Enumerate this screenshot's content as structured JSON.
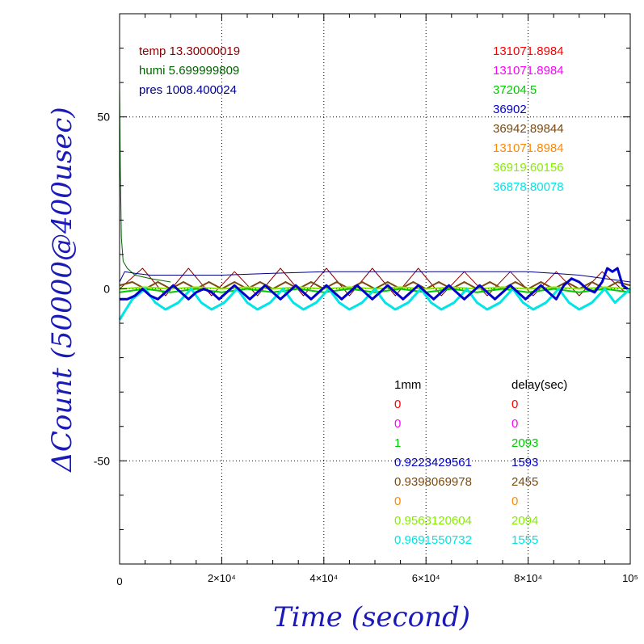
{
  "chart_data": {
    "type": "line",
    "xlabel": "Time (second)",
    "ylabel": "ΔCount (50000@400usec)",
    "xlim": [
      0,
      100000
    ],
    "ylim": [
      -80,
      80
    ],
    "grid": true,
    "x_ticks": [
      {
        "value": 0,
        "label": "0"
      },
      {
        "value": 20000,
        "label": "2×10⁴"
      },
      {
        "value": 40000,
        "label": "4×10⁴"
      },
      {
        "value": 60000,
        "label": "6×10⁴"
      },
      {
        "value": 80000,
        "label": "8×10⁴"
      },
      {
        "value": 100000,
        "label": "10⁵"
      }
    ],
    "y_ticks": [
      {
        "value": 50,
        "label": "50"
      },
      {
        "value": 0,
        "label": "0"
      },
      {
        "value": -50,
        "label": "-50"
      }
    ],
    "env_labels": [
      {
        "text": "temp 13.30000019",
        "color": "#8b0000"
      },
      {
        "text": "humi 5.699999809",
        "color": "#006400"
      },
      {
        "text": "pres 1008.400024",
        "color": "#00008b"
      }
    ],
    "legend_values": [
      {
        "text": "131071.8984",
        "color": "#ff0000"
      },
      {
        "text": "131071.8984",
        "color": "#ff00ff"
      },
      {
        "text": "37204.5",
        "color": "#00cc00"
      },
      {
        "text": "36902",
        "color": "#0000cc"
      },
      {
        "text": "36942.89844",
        "color": "#7a4a10"
      },
      {
        "text": "131071.8984",
        "color": "#ff8800"
      },
      {
        "text": "36919.60156",
        "color": "#88ee00"
      },
      {
        "text": "36878.80078",
        "color": "#00e5e5"
      }
    ],
    "table_headers": [
      "1mm",
      "delay(sec)"
    ],
    "table_rows": [
      {
        "mm": "0",
        "delay": "0",
        "color": "#ff0000"
      },
      {
        "mm": "0",
        "delay": "0",
        "color": "#ff00ff"
      },
      {
        "mm": "1",
        "delay": "2093",
        "color": "#00cc00"
      },
      {
        "mm": "0.9223429561",
        "delay": "1593",
        "color": "#0000cc"
      },
      {
        "mm": "0.9398069978",
        "delay": "2455",
        "color": "#7a4a10"
      },
      {
        "mm": "0",
        "delay": "0",
        "color": "#ff8800"
      },
      {
        "mm": "0.9563120604",
        "delay": "2094",
        "color": "#88ee00"
      },
      {
        "mm": "0.9691550732",
        "delay": "1555",
        "color": "#00e5e5"
      }
    ],
    "series": [
      {
        "name": "temp",
        "color": "#8b0000",
        "width": 1,
        "x": [
          0,
          4500,
          9000,
          13500,
          18000,
          22500,
          27000,
          31500,
          36000,
          40500,
          45000,
          49500,
          54000,
          58500,
          63000,
          67500,
          72000,
          76500,
          81000,
          85500,
          90000,
          94500,
          99000
        ],
        "y": [
          0,
          6,
          -2,
          6,
          -2,
          5,
          -2,
          6,
          -2,
          6,
          -2,
          6,
          -2,
          6,
          -2,
          5,
          -2,
          5,
          -2,
          5,
          -2,
          5,
          -1
        ]
      },
      {
        "name": "humi",
        "color": "#006400",
        "width": 1,
        "x": [
          0,
          150,
          350,
          700,
          1500,
          3000,
          6000,
          10000
        ],
        "y": [
          60,
          35,
          15,
          8,
          6,
          4,
          3,
          2
        ]
      },
      {
        "name": "pres",
        "color": "#00008b",
        "width": 1,
        "x": [
          0,
          1000,
          3000,
          6000,
          10000,
          20000,
          30000,
          40000,
          50000,
          60000,
          70000,
          80000,
          85000,
          90000,
          95000,
          100000
        ],
        "y": [
          2,
          5,
          4.5,
          4,
          4,
          4,
          4.5,
          5,
          5,
          5,
          5,
          5,
          4.5,
          4,
          3,
          2
        ]
      },
      {
        "name": "36942.89844",
        "color": "#7a4a10",
        "width": 2,
        "x": [
          0,
          2500,
          5000,
          7500,
          10000,
          12500,
          15000,
          17500,
          20000,
          22500,
          25000,
          27500,
          30000,
          32500,
          35000,
          37500,
          40000,
          42500,
          45000,
          47500,
          50000,
          52500,
          55000,
          57500,
          60000,
          62500,
          65000,
          67500,
          70000,
          72500,
          75000,
          77500,
          80000,
          82500,
          85000,
          87500,
          90000,
          92500,
          95000,
          97500,
          100000
        ],
        "y": [
          1,
          2,
          0,
          2,
          0,
          2,
          0,
          2,
          0,
          2,
          0,
          2,
          0,
          2,
          0,
          2,
          0,
          2,
          0,
          2,
          0,
          2,
          0,
          2,
          0,
          2,
          0,
          2,
          0,
          2,
          0,
          2,
          0,
          2,
          0,
          2,
          0,
          2,
          0,
          2,
          1
        ]
      },
      {
        "name": "36919.60156",
        "color": "#88ee00",
        "width": 2,
        "x": [
          0,
          5000,
          10000,
          15000,
          20000,
          25000,
          30000,
          35000,
          40000,
          45000,
          50000,
          55000,
          60000,
          65000,
          70000,
          75000,
          80000,
          85000,
          90000,
          95000,
          100000
        ],
        "y": [
          0,
          0.5,
          0,
          0.5,
          0,
          0.5,
          0,
          0.5,
          0,
          0.5,
          0,
          0.5,
          0,
          0.5,
          0,
          0.5,
          0,
          0.5,
          0,
          0.5,
          0
        ]
      },
      {
        "name": "37204.5",
        "color": "#00cc00",
        "width": 2,
        "x": [
          0,
          5000,
          10000,
          15000,
          20000,
          25000,
          30000,
          35000,
          40000,
          45000,
          50000,
          55000,
          60000,
          65000,
          70000,
          75000,
          80000,
          85000,
          90000,
          95000,
          100000
        ],
        "y": [
          -1,
          0,
          -1,
          0,
          -1,
          0,
          -1,
          0,
          -1,
          0,
          -1,
          0,
          -1,
          0,
          -1,
          0,
          -1,
          0,
          -1,
          0,
          -1
        ]
      },
      {
        "name": "36878.80078",
        "color": "#00e5e5",
        "width": 3,
        "x": [
          0,
          800,
          2500,
          5000,
          7000,
          9000,
          11500,
          14000,
          16000,
          18000,
          20500,
          23000,
          25000,
          27000,
          29500,
          32000,
          34000,
          36000,
          38500,
          41000,
          43000,
          45000,
          47500,
          50000,
          52000,
          54000,
          56500,
          59000,
          61000,
          63000,
          65500,
          68000,
          70000,
          72000,
          74500,
          77000,
          79000,
          81000,
          83500,
          86000,
          88000,
          90000,
          92500,
          95000,
          97000,
          100000
        ],
        "y": [
          -9,
          -7,
          -3,
          0,
          -4,
          -6,
          -4,
          0,
          -4,
          -6,
          -4,
          0,
          -4,
          -6,
          -4,
          0,
          -4,
          -6,
          -4,
          0,
          -4,
          -6,
          -4,
          0,
          -4,
          -6,
          -4,
          0,
          -4,
          -6,
          -4,
          0,
          -4,
          -6,
          -4,
          0,
          -4,
          -6,
          -4,
          0,
          -4,
          -6,
          -4,
          0,
          -4,
          0
        ]
      },
      {
        "name": "36902",
        "color": "#0000cc",
        "width": 3,
        "x": [
          0,
          1500,
          3000,
          4500,
          6000,
          7500,
          9000,
          10500,
          12000,
          13500,
          15000,
          16500,
          18000,
          19500,
          21000,
          22500,
          24000,
          25500,
          27000,
          28500,
          30000,
          31500,
          33000,
          34500,
          36000,
          37500,
          39000,
          40500,
          42000,
          43500,
          45000,
          46500,
          48000,
          49500,
          51000,
          52500,
          54000,
          55500,
          57000,
          58500,
          60000,
          61500,
          63000,
          64500,
          66000,
          67500,
          69000,
          70500,
          72000,
          73500,
          75000,
          76500,
          78000,
          79500,
          81000,
          82500,
          84000,
          85500,
          87000,
          88500,
          90000,
          91500,
          93000,
          94500,
          95500,
          96500,
          97500,
          98500,
          99500
        ],
        "y": [
          -3,
          -3,
          -2,
          0,
          -2,
          -3,
          -1,
          1,
          -1,
          -3,
          -1,
          0,
          -1,
          -3,
          -1,
          1,
          -1,
          -3,
          -1,
          1,
          -1,
          -3,
          -1,
          1,
          -1,
          -3,
          -1,
          1,
          -1,
          -3,
          -1,
          1,
          -1,
          -3,
          -1,
          1,
          -1,
          -3,
          -1,
          1,
          -1,
          -3,
          -1,
          1,
          -1,
          -3,
          -1,
          1,
          -1,
          -3,
          -1,
          1,
          -1,
          -3,
          -1,
          1,
          -1,
          -3,
          1,
          3,
          2,
          0,
          -1,
          2,
          6,
          5,
          6,
          1,
          0
        ]
      }
    ]
  }
}
